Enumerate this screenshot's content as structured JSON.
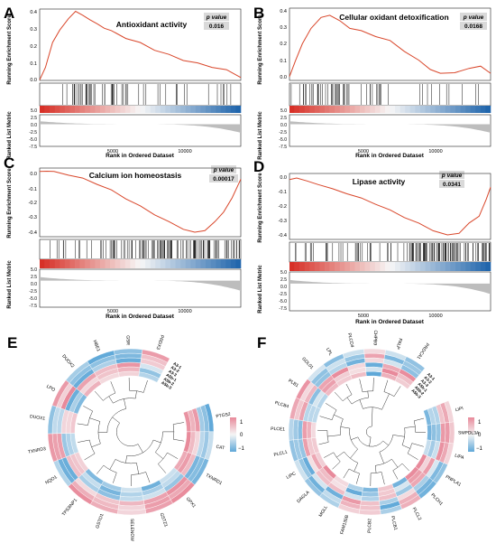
{
  "colors": {
    "curve": "#d9472b",
    "red": "#d73027",
    "blue": "#2166ac",
    "gray": "#bdbdbd",
    "pval_bg": "#d9d9d9",
    "heat_high": "#e8899a",
    "heat_low": "#5fa8d8"
  },
  "gsea_common": {
    "ylabel_es": "Running Enrichment Score",
    "ylabel_metric": "Ranked List Metric",
    "xlabel": "Rank in Ordered Dataset",
    "pvalue_label": "p value",
    "xticks": [
      "5000",
      "10000"
    ],
    "metric_ticks": [
      "5.0",
      "2.5",
      "0.0",
      "-2.5",
      "-5.0",
      "-7.5"
    ]
  },
  "chart_data": [
    {
      "type": "line",
      "panel": "A",
      "title": "Antioxidant activity",
      "pvalue": "0.016",
      "xlim": [
        0,
        14000
      ],
      "ylim": [
        0,
        0.42
      ],
      "yticks": [
        "0.4",
        "0.3",
        "0.2",
        "0.1",
        "0.0"
      ],
      "x": [
        0,
        400,
        900,
        1400,
        2000,
        2500,
        3000,
        3500,
        4000,
        4500,
        5000,
        6000,
        7000,
        8000,
        9000,
        10000,
        11000,
        12000,
        13000,
        14000
      ],
      "y": [
        0.0,
        0.08,
        0.22,
        0.3,
        0.36,
        0.41,
        0.38,
        0.36,
        0.33,
        0.31,
        0.29,
        0.25,
        0.22,
        0.18,
        0.15,
        0.12,
        0.1,
        0.08,
        0.06,
        0.02
      ]
    },
    {
      "type": "line",
      "panel": "B",
      "title": "Cellular oxidant detoxification",
      "pvalue": "0.0168",
      "xlim": [
        0,
        14000
      ],
      "ylim": [
        -0.02,
        0.42
      ],
      "yticks": [
        "0.4",
        "0.3",
        "0.2",
        "0.1",
        "0.0"
      ],
      "x": [
        0,
        400,
        900,
        1500,
        2200,
        2800,
        3500,
        4200,
        5000,
        6000,
        7000,
        8000,
        9000,
        9800,
        10500,
        11500,
        12500,
        13300,
        14000
      ],
      "y": [
        0.0,
        0.1,
        0.2,
        0.3,
        0.36,
        0.38,
        0.34,
        0.3,
        0.28,
        0.25,
        0.22,
        0.16,
        0.1,
        0.05,
        0.02,
        0.03,
        0.05,
        0.07,
        0.02
      ]
    },
    {
      "type": "line",
      "panel": "C",
      "title": "Calcium ion homeostasis",
      "pvalue": "0.00017",
      "xlim": [
        0,
        14000
      ],
      "ylim": [
        -0.47,
        0.05
      ],
      "yticks": [
        "0.0",
        "-0.1",
        "-0.2",
        "-0.3",
        "-0.4"
      ],
      "x": [
        0,
        500,
        1000,
        2000,
        3000,
        4000,
        5000,
        6000,
        7000,
        8000,
        9000,
        10000,
        10800,
        11500,
        12200,
        12800,
        13400,
        14000
      ],
      "y": [
        0.02,
        0.03,
        0.02,
        0.0,
        -0.03,
        -0.07,
        -0.12,
        -0.18,
        -0.24,
        -0.3,
        -0.36,
        -0.41,
        -0.44,
        -0.42,
        -0.36,
        -0.28,
        -0.18,
        -0.03
      ]
    },
    {
      "type": "line",
      "panel": "D",
      "title": "Lipase activity",
      "pvalue": "0.0341",
      "xlim": [
        0,
        14000
      ],
      "ylim": [
        -0.45,
        0.05
      ],
      "yticks": [
        "0.0",
        "-0.1",
        "-0.2",
        "-0.3",
        "-0.4"
      ],
      "x": [
        0,
        500,
        1200,
        2000,
        3000,
        4000,
        5000,
        6000,
        7000,
        8000,
        9000,
        10000,
        11000,
        11800,
        12500,
        13200,
        13700,
        14000
      ],
      "y": [
        0.0,
        0.02,
        -0.01,
        -0.03,
        -0.07,
        -0.1,
        -0.14,
        -0.18,
        -0.23,
        -0.28,
        -0.33,
        -0.38,
        -0.42,
        -0.4,
        -0.33,
        -0.27,
        -0.15,
        -0.05
      ]
    },
    {
      "type": "heatmap",
      "panel": "E",
      "rows": [
        "A5b-3",
        "A5b-2",
        "A5b-1",
        "A3-3",
        "A3-2",
        "A3-1"
      ],
      "genes": [
        "PTGS2",
        "CAT",
        "TXNRD1",
        "GPX1",
        "GSTZ1",
        "SELENOW",
        "GSTO1",
        "TP53INP1",
        "NQO1",
        "TXNRD3",
        "DUOX1",
        "LPO",
        "DUOX2",
        "HBE1",
        "GSR",
        "PRDX3"
      ],
      "legend_ticks": [
        "1",
        "0",
        "−1"
      ]
    },
    {
      "type": "heatmap",
      "panel": "F",
      "rows": [
        "A5b-3",
        "A5b-2",
        "A5b-1",
        "A3-3",
        "A3-2",
        "A3-1"
      ],
      "genes": [
        "LIPI",
        "SMPDL3A",
        "LIPA",
        "PNPLA1",
        "PLCH1",
        "PLCL2",
        "PLCB1",
        "PLCB2",
        "FAM135B",
        "MGLL",
        "DAGLA",
        "LIPC",
        "PLCL1",
        "PLCE1",
        "PLCB4",
        "PLB1",
        "GDL01",
        "LPL",
        "PLCD4",
        "CHPB9",
        "PALP",
        "PRDCA1"
      ],
      "legend_ticks": [
        "1",
        "0",
        "−1"
      ]
    }
  ]
}
